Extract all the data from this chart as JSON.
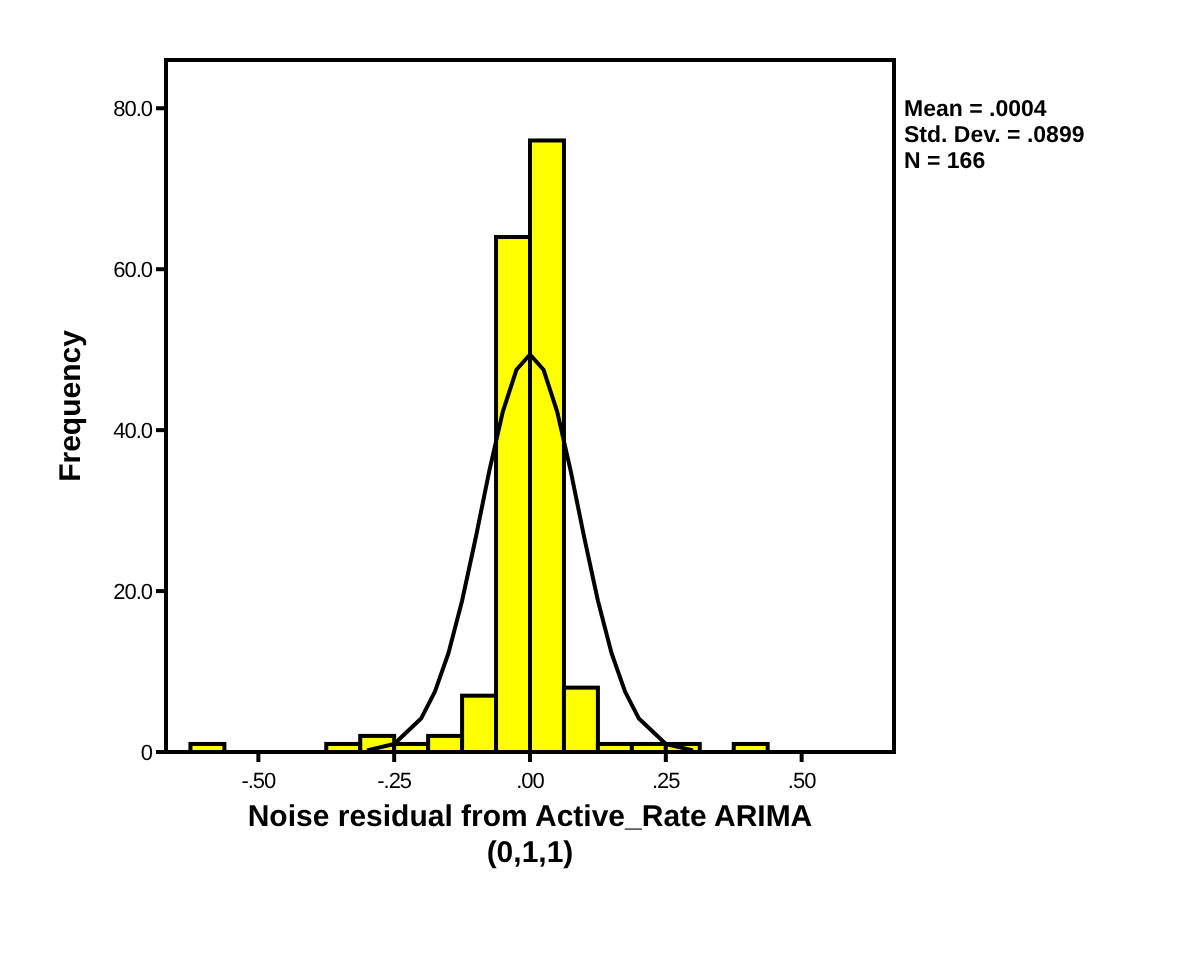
{
  "chart_data": {
    "type": "histogram",
    "xlabel": "Noise residual from Active_Rate ARIMA\n(0,1,1)",
    "ylabel": "Frequency",
    "bins": [
      -0.625,
      -0.5625,
      -0.5,
      -0.4375,
      -0.375,
      -0.3125,
      -0.25,
      -0.1875,
      -0.125,
      -0.0625,
      0,
      0.0625,
      0.125,
      0.1875,
      0.25,
      0.3125,
      0.375,
      0.4375
    ],
    "values": [
      1,
      0,
      0,
      0,
      1,
      2,
      1,
      2,
      7,
      64,
      76,
      8,
      1,
      1,
      1,
      0,
      1
    ],
    "color": "#ffff00",
    "series": [
      {
        "type": "line",
        "color": "#000000",
        "x": [
          -0.3,
          -0.25,
          -0.2,
          -0.175,
          -0.15,
          -0.125,
          -0.1,
          -0.075,
          -0.05,
          -0.025,
          0,
          0.025,
          0.05,
          0.075,
          0.1,
          0.125,
          0.15,
          0.175,
          0.2,
          0.25,
          0.3
        ],
        "values": [
          0.2,
          1.0,
          4.2,
          7.5,
          12.3,
          18.8,
          26.6,
          34.9,
          42.3,
          47.5,
          49.4,
          47.5,
          42.3,
          34.9,
          26.6,
          18.8,
          12.3,
          7.5,
          4.2,
          1.0,
          0.2
        ]
      }
    ],
    "marker": "none",
    "xlim": [
      -0.67,
      0.67
    ],
    "ylim": [
      0,
      86
    ],
    "xticks": [
      {
        "value": -0.5,
        "label": "-.50"
      },
      {
        "value": -0.25,
        "label": "-.25"
      },
      {
        "value": 0,
        "label": ".00"
      },
      {
        "value": 0.25,
        "label": ".25"
      },
      {
        "value": 0.5,
        "label": ".50"
      }
    ],
    "yticks": [
      0,
      {
        "value": 20,
        "label": "20.0"
      },
      {
        "value": 40,
        "label": "40.0"
      },
      {
        "value": 60,
        "label": "60.0"
      },
      {
        "value": 80,
        "label": "80.0"
      }
    ],
    "annotations": [
      "Mean = .0004",
      "Std. Dev. = .0899",
      "N = 166"
    ]
  }
}
